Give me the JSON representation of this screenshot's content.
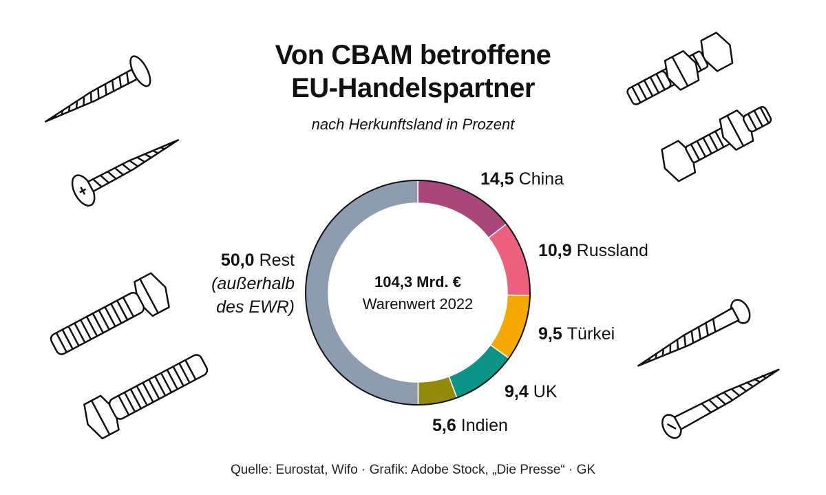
{
  "title_lines": [
    "Von CBAM betroffene",
    "EU-Handelspartner"
  ],
  "subtitle": "nach Herkunftsland in Prozent",
  "center_label": {
    "line1": "104,3 Mrd. €",
    "line2": "Warenwert 2022"
  },
  "source": "Quelle: Eurostat, Wifo · Grafik: Adobe Stock, „Die Presse“ · GK",
  "illustrations": [
    "screw-icon",
    "screw-icon",
    "bolt-icon",
    "bolt-icon",
    "bolt-icon",
    "bolt-icon",
    "screw-icon",
    "screw-icon"
  ],
  "chart_data": {
    "type": "pie",
    "variant": "donut",
    "title": "Von CBAM betroffene EU-Handelspartner",
    "subtitle": "nach Herkunftsland in Prozent",
    "slices": [
      {
        "label": "China",
        "value": 14.5,
        "display": "14,5",
        "color": "#a94878"
      },
      {
        "label": "Russland",
        "value": 10.9,
        "display": "10,9",
        "color": "#ec5f7d"
      },
      {
        "label": "Türkei",
        "value": 9.5,
        "display": "9,5",
        "color": "#f4a800"
      },
      {
        "label": "UK",
        "value": 9.4,
        "display": "9,4",
        "color": "#0c9488"
      },
      {
        "label": "Indien",
        "value": 5.6,
        "display": "5,6",
        "color": "#938a0c"
      },
      {
        "label": "Rest",
        "value": 50.0,
        "display": "50,0",
        "color": "#8e9cb0",
        "note_lines": [
          "(außerhalb",
          "des EWR)"
        ]
      }
    ]
  }
}
